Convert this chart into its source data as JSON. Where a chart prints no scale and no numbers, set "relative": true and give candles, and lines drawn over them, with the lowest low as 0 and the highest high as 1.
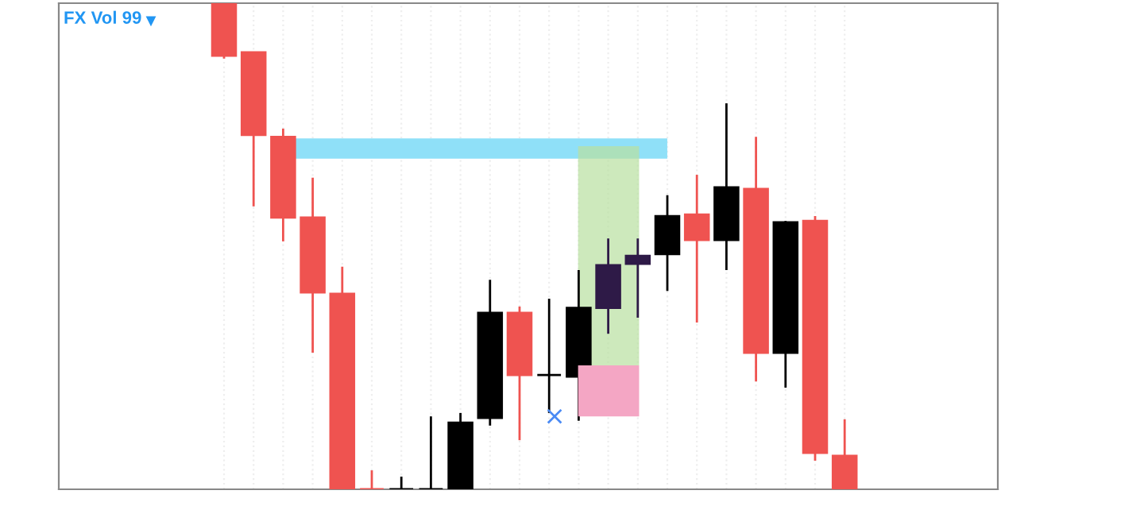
{
  "chart_data": {
    "type": "candlestick",
    "title": "FX Vol 99",
    "relative": true,
    "grid": true,
    "categories": [
      null,
      null,
      null,
      null,
      null,
      null,
      null,
      null,
      null,
      null,
      null,
      null,
      null,
      null,
      null,
      null,
      null,
      null,
      null,
      null,
      null,
      null
    ],
    "ohlc": [
      [
        1.0,
        1.0,
        0.886,
        0.892
      ],
      [
        0.899,
        0.899,
        0.582,
        0.729
      ],
      [
        0.725,
        0.742,
        0.51,
        0.559
      ],
      [
        0.559,
        0.641,
        0.281,
        0.405
      ],
      [
        0.402,
        0.458,
        0.0,
        0.0
      ],
      [
        0.0,
        0.039,
        0.0,
        0.0
      ],
      [
        0.0,
        0.026,
        0.0,
        0.0
      ],
      [
        0.0,
        0.15,
        0.0,
        0.0
      ],
      [
        0.0,
        0.157,
        0.0,
        0.137
      ],
      [
        0.147,
        0.431,
        0.131,
        0.363
      ],
      [
        0.363,
        0.376,
        0.101,
        0.235
      ],
      [
        0.235,
        0.392,
        0.157,
        0.235
      ],
      [
        0.232,
        0.451,
        0.141,
        0.373
      ],
      [
        0.373,
        0.516,
        0.32,
        0.461
      ],
      [
        0.464,
        0.516,
        0.353,
        0.48
      ],
      [
        0.484,
        0.605,
        0.408,
        0.562
      ],
      [
        0.565,
        0.647,
        0.343,
        0.513
      ],
      [
        0.513,
        0.794,
        0.451,
        0.621
      ],
      [
        0.618,
        0.725,
        0.222,
        0.281
      ],
      [
        0.281,
        0.552,
        0.209,
        0.549
      ],
      [
        0.552,
        0.562,
        0.059,
        0.075
      ],
      [
        0.069,
        0.144,
        0.0,
        0.0
      ]
    ],
    "colors": [
      "#ef5350",
      "#ef5350",
      "#ef5350",
      "#ef5350",
      "#ef5350",
      "#ef5350",
      "#000000",
      "#000000",
      "#000000",
      "#000000",
      "#ef5350",
      "#000000",
      "#000000",
      "#2e1a47",
      "#2e1a47",
      "#000000",
      "#ef5350",
      "#000000",
      "#ef5350",
      "#000000",
      "#ef5350",
      "#ef5350"
    ]
  }
}
